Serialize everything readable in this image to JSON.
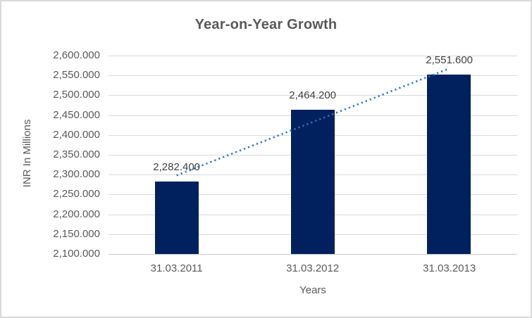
{
  "chart": {
    "title": "Year-on-Year Growth",
    "y_axis_title": "INR In Millions",
    "x_axis_title": "Years"
  },
  "chart_data": {
    "type": "bar",
    "title": "Year-on-Year Growth",
    "xlabel": "Years",
    "ylabel": "INR In Millions",
    "categories": [
      "31.03.2011",
      "31.03.2012",
      "31.03.2013"
    ],
    "values": [
      2282.4,
      2464.2,
      2551.6
    ],
    "data_labels": [
      "2,282.400",
      "2,464.200",
      "2,551.600"
    ],
    "y_ticks": [
      "2,600.000",
      "2,550.000",
      "2,500.000",
      "2,450.000",
      "2,400.000",
      "2,350.000",
      "2,300.000",
      "2,250.000",
      "2,200.000",
      "2,150.000",
      "2,100.000"
    ],
    "ylim": [
      2100,
      2600
    ],
    "y_step": 50,
    "grid": true,
    "legend": "none",
    "trendline": {
      "type": "linear",
      "style": "dotted",
      "start_value": 2298.1,
      "end_value": 2567.3
    },
    "colors": {
      "bar": "#00215E",
      "trendline": "#2E75B6",
      "text": "#595959",
      "data_label": "#404040",
      "gridline": "#D9D9D9",
      "axis_line": "#C9C9C9",
      "border": "#D9D9D9"
    }
  }
}
